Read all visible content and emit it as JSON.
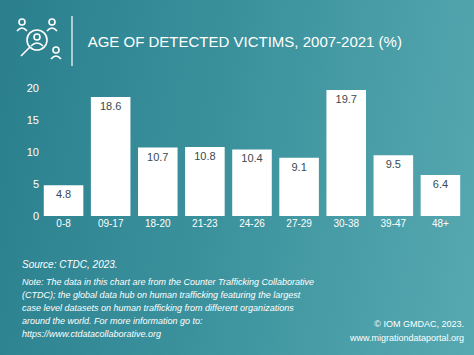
{
  "chart_data": {
    "type": "bar",
    "title": "AGE OF DETECTED VICTIMS, 2007-2021 (%)",
    "categories": [
      "0-8",
      "09-17",
      "18-20",
      "21-23",
      "24-26",
      "27-29",
      "30-38",
      "39-47",
      "48+"
    ],
    "values": [
      4.8,
      18.6,
      10.7,
      10.8,
      10.4,
      9.1,
      19.7,
      9.5,
      6.4
    ],
    "color": "#ffffff",
    "ylim": [
      0,
      20
    ],
    "yticks": [
      0,
      5,
      10,
      15,
      20
    ],
    "grid": false,
    "data_labels": true,
    "annotations": [
      "Source: CTDC, 2023.",
      "Note: The data in this chart are from the Counter Trafficking Collaborative (CTDC); the global data hub on human trafficking featuring the largest case level datasets on human trafficking from different organizations around the world. For more information go to: https://www.ctdatacollaborative.org",
      "© IOM GMDAC, 2023.",
      "www.migrationdataportal.org"
    ]
  }
}
